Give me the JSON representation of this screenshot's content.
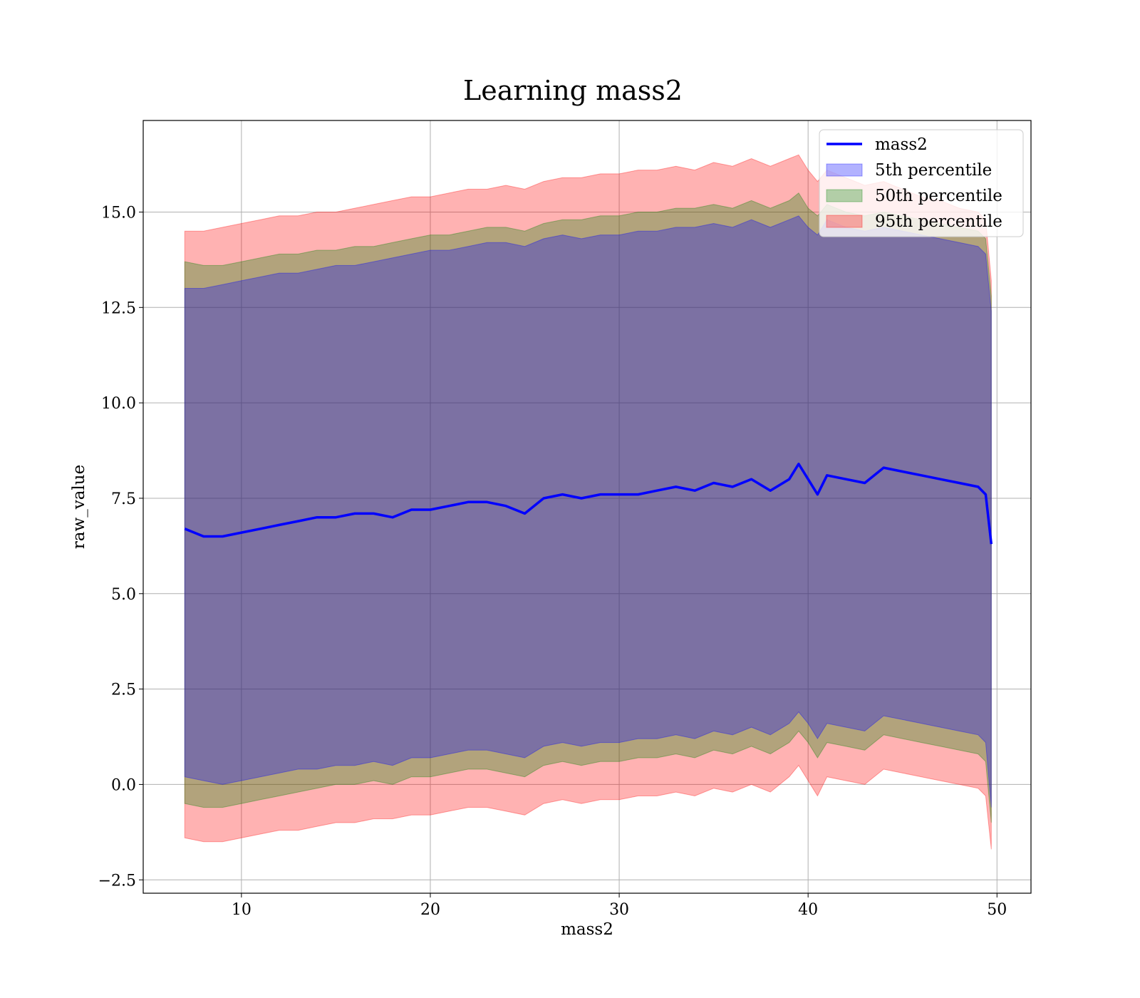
{
  "chart_data": {
    "type": "line",
    "title": "Learning mass2",
    "xlabel": "mass2",
    "ylabel": "raw_value",
    "xlim": [
      4.8,
      51.8
    ],
    "ylim": [
      -2.85,
      17.4
    ],
    "xticks": [
      10,
      20,
      30,
      40,
      50
    ],
    "yticks": [
      -2.5,
      0.0,
      2.5,
      5.0,
      7.5,
      10.0,
      12.5,
      15.0
    ],
    "xtick_labels": [
      "10",
      "20",
      "30",
      "40",
      "50"
    ],
    "ytick_labels": [
      "−2.5",
      "0.0",
      "2.5",
      "5.0",
      "7.5",
      "10.0",
      "12.5",
      "15.0"
    ],
    "grid": true,
    "legend_position": "top-right",
    "x": [
      7.0,
      8.0,
      9.0,
      10.0,
      11.0,
      12.0,
      13.0,
      14.0,
      15.0,
      16.0,
      17.0,
      18.0,
      19.0,
      20.0,
      21.0,
      22.0,
      23.0,
      24.0,
      25.0,
      26.0,
      27.0,
      28.0,
      29.0,
      30.0,
      31.0,
      32.0,
      33.0,
      34.0,
      35.0,
      36.0,
      37.0,
      38.0,
      39.0,
      39.5,
      40.0,
      40.5,
      41.0,
      42.0,
      43.0,
      44.0,
      45.0,
      46.0,
      47.0,
      48.0,
      49.0,
      49.4,
      49.7
    ],
    "series": [
      {
        "name": "mass2",
        "type": "line",
        "color": "#0000ff",
        "values": [
          6.7,
          6.5,
          6.5,
          6.6,
          6.7,
          6.8,
          6.9,
          7.0,
          7.0,
          7.1,
          7.1,
          7.0,
          7.2,
          7.2,
          7.3,
          7.4,
          7.4,
          7.3,
          7.1,
          7.5,
          7.6,
          7.5,
          7.6,
          7.6,
          7.6,
          7.7,
          7.8,
          7.7,
          7.9,
          7.8,
          8.0,
          7.7,
          8.0,
          8.4,
          8.0,
          7.6,
          8.1,
          8.0,
          7.9,
          8.3,
          8.2,
          8.1,
          8.0,
          7.9,
          7.8,
          7.6,
          6.3
        ]
      },
      {
        "name": "5th percentile",
        "type": "band",
        "color": "#0000ff",
        "lower": [
          0.2,
          0.1,
          0.0,
          0.1,
          0.2,
          0.3,
          0.4,
          0.4,
          0.5,
          0.5,
          0.6,
          0.5,
          0.7,
          0.7,
          0.8,
          0.9,
          0.9,
          0.8,
          0.7,
          1.0,
          1.1,
          1.0,
          1.1,
          1.1,
          1.2,
          1.2,
          1.3,
          1.2,
          1.4,
          1.3,
          1.5,
          1.3,
          1.6,
          1.9,
          1.6,
          1.2,
          1.6,
          1.5,
          1.4,
          1.8,
          1.7,
          1.6,
          1.5,
          1.4,
          1.3,
          1.1,
          -0.6
        ],
        "upper": [
          13.0,
          13.0,
          13.1,
          13.2,
          13.3,
          13.4,
          13.4,
          13.5,
          13.6,
          13.6,
          13.7,
          13.8,
          13.9,
          14.0,
          14.0,
          14.1,
          14.2,
          14.2,
          14.1,
          14.3,
          14.4,
          14.3,
          14.4,
          14.4,
          14.5,
          14.5,
          14.6,
          14.6,
          14.7,
          14.6,
          14.8,
          14.6,
          14.8,
          14.9,
          14.6,
          14.4,
          14.8,
          14.6,
          14.5,
          14.6,
          14.5,
          14.4,
          14.3,
          14.2,
          14.1,
          13.9,
          12.4
        ]
      },
      {
        "name": "50th percentile",
        "type": "band",
        "color": "#008000",
        "lower": [
          -0.5,
          -0.6,
          -0.6,
          -0.5,
          -0.4,
          -0.3,
          -0.2,
          -0.1,
          0.0,
          0.0,
          0.1,
          0.0,
          0.2,
          0.2,
          0.3,
          0.4,
          0.4,
          0.3,
          0.2,
          0.5,
          0.6,
          0.5,
          0.6,
          0.6,
          0.7,
          0.7,
          0.8,
          0.7,
          0.9,
          0.8,
          1.0,
          0.8,
          1.1,
          1.4,
          1.1,
          0.7,
          1.1,
          1.0,
          0.9,
          1.3,
          1.2,
          1.1,
          1.0,
          0.9,
          0.8,
          0.6,
          -1.0
        ],
        "upper": [
          13.7,
          13.6,
          13.6,
          13.7,
          13.8,
          13.9,
          13.9,
          14.0,
          14.0,
          14.1,
          14.1,
          14.2,
          14.3,
          14.4,
          14.4,
          14.5,
          14.6,
          14.6,
          14.5,
          14.7,
          14.8,
          14.8,
          14.9,
          14.9,
          15.0,
          15.0,
          15.1,
          15.1,
          15.2,
          15.1,
          15.3,
          15.1,
          15.3,
          15.5,
          15.1,
          14.9,
          15.2,
          15.0,
          14.9,
          15.0,
          14.9,
          14.8,
          14.7,
          14.6,
          14.5,
          14.3,
          12.8
        ]
      },
      {
        "name": "95th percentile",
        "type": "band",
        "color": "#ff0000",
        "lower": [
          -1.4,
          -1.5,
          -1.5,
          -1.4,
          -1.3,
          -1.2,
          -1.2,
          -1.1,
          -1.0,
          -1.0,
          -0.9,
          -0.9,
          -0.8,
          -0.8,
          -0.7,
          -0.6,
          -0.6,
          -0.7,
          -0.8,
          -0.5,
          -0.4,
          -0.5,
          -0.4,
          -0.4,
          -0.3,
          -0.3,
          -0.2,
          -0.3,
          -0.1,
          -0.2,
          0.0,
          -0.2,
          0.2,
          0.5,
          0.1,
          -0.3,
          0.2,
          0.1,
          0.0,
          0.4,
          0.3,
          0.2,
          0.1,
          0.0,
          -0.1,
          -0.3,
          -1.7
        ],
        "upper": [
          14.5,
          14.5,
          14.6,
          14.7,
          14.8,
          14.9,
          14.9,
          15.0,
          15.0,
          15.1,
          15.2,
          15.3,
          15.4,
          15.4,
          15.5,
          15.6,
          15.6,
          15.7,
          15.6,
          15.8,
          15.9,
          15.9,
          16.0,
          16.0,
          16.1,
          16.1,
          16.2,
          16.1,
          16.3,
          16.2,
          16.4,
          16.2,
          16.4,
          16.5,
          16.1,
          15.8,
          16.1,
          15.9,
          15.7,
          15.8,
          15.6,
          15.4,
          15.3,
          15.1,
          15.0,
          14.8,
          13.2
        ]
      }
    ]
  }
}
